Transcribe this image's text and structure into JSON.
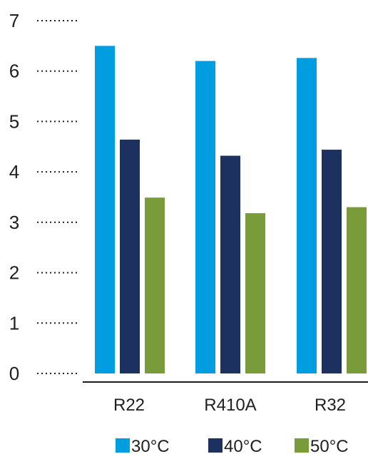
{
  "chart_data": {
    "type": "bar",
    "categories": [
      "R22",
      "R410A",
      "R32"
    ],
    "series": [
      {
        "name": "30°C",
        "color": "#009ee0",
        "values": [
          6.5,
          6.2,
          6.26
        ]
      },
      {
        "name": "40°C",
        "color": "#1c3160",
        "values": [
          4.64,
          4.32,
          4.44
        ]
      },
      {
        "name": "50°C",
        "color": "#7a9b3a",
        "values": [
          3.49,
          3.18,
          3.3
        ]
      }
    ],
    "yticks": [
      "0",
      "1",
      "2",
      "3",
      "4",
      "5",
      "6",
      "7"
    ],
    "ylim": [
      0,
      7
    ],
    "grid": false,
    "legend_position": "bottom"
  }
}
